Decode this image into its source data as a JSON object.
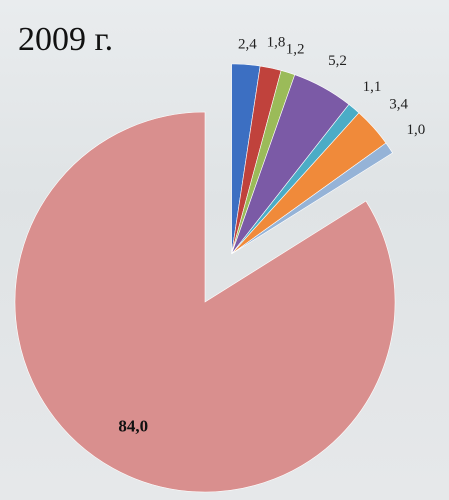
{
  "chart_data": {
    "type": "pie",
    "title": "2009 г.",
    "values": [
      2.4,
      1.8,
      1.2,
      5.2,
      1.1,
      3.4,
      1.0,
      84.0
    ],
    "value_labels": [
      "2,4",
      "1,8",
      "1,2",
      "5,2",
      "1,1",
      "3,4",
      "1,0",
      "84,0"
    ],
    "colors": [
      "#3c6fc2",
      "#c0423c",
      "#9bbb59",
      "#7b5aa6",
      "#4bacc6",
      "#f08a3a",
      "#95b3d7",
      "#d98f8e"
    ]
  }
}
